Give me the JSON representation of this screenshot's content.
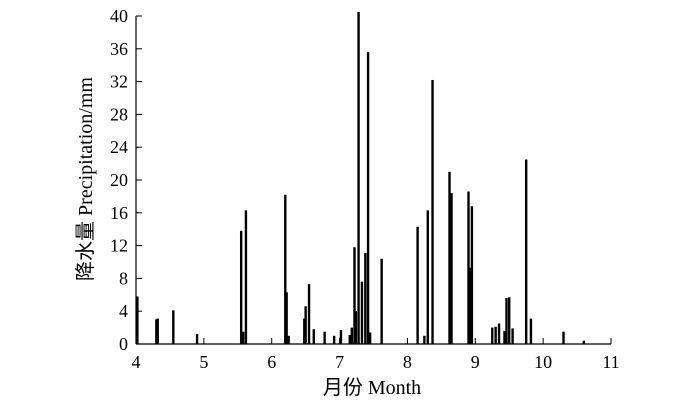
{
  "chart_data": {
    "type": "bar",
    "xlabel": "月份 Month",
    "ylabel": "降水量 Precipitation/mm",
    "xlim": [
      4,
      11
    ],
    "ylim": [
      0,
      40
    ],
    "xticks": [
      4,
      5,
      6,
      7,
      8,
      9,
      10,
      11
    ],
    "yticks": [
      0,
      4,
      8,
      12,
      16,
      20,
      24,
      28,
      32,
      36,
      40
    ],
    "grid": false,
    "bar_color": "#000000",
    "x": [
      4.02,
      4.3,
      4.32,
      4.55,
      4.9,
      5.55,
      5.58,
      5.62,
      6.2,
      6.22,
      6.25,
      6.48,
      6.5,
      6.55,
      6.62,
      6.78,
      6.92,
      7.02,
      7.15,
      7.18,
      7.22,
      7.24,
      7.28,
      7.33,
      7.38,
      7.42,
      7.45,
      7.62,
      8.15,
      8.25,
      8.3,
      8.37,
      8.62,
      8.65,
      8.9,
      8.92,
      8.95,
      9.25,
      9.3,
      9.35,
      9.43,
      9.46,
      9.5,
      9.55,
      9.75,
      9.82,
      10.3,
      10.6
    ],
    "values": [
      5.8,
      3.0,
      3.1,
      4.1,
      1.2,
      13.8,
      1.5,
      16.3,
      18.2,
      6.3,
      1.0,
      3.1,
      4.6,
      7.3,
      1.8,
      1.5,
      1.0,
      1.7,
      1.1,
      2.0,
      11.8,
      4.0,
      40.5,
      7.6,
      11.1,
      35.6,
      1.4,
      10.4,
      14.3,
      1.0,
      16.3,
      32.2,
      21.0,
      18.4,
      18.6,
      9.3,
      16.8,
      2.0,
      2.1,
      2.5,
      1.6,
      5.6,
      5.7,
      1.9,
      22.5,
      3.1,
      1.5,
      0.4
    ]
  }
}
